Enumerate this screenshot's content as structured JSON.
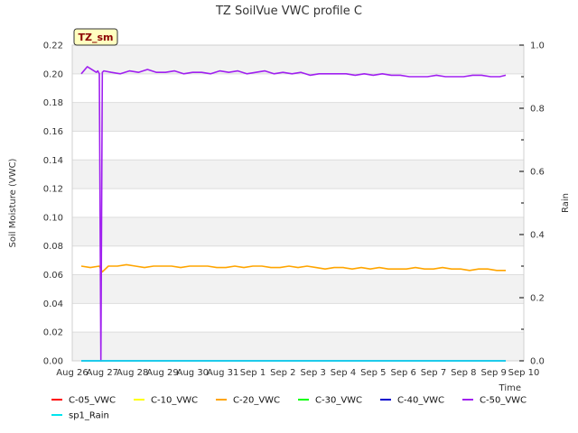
{
  "chart_data": {
    "type": "line",
    "title": "TZ SoilVue VWC profile C",
    "badge": "TZ_sm",
    "xlabel": "Time",
    "ylabel": "Soil Moisture (VWC)",
    "y2label": "Rain",
    "ylim": [
      0,
      0.22
    ],
    "y2lim": [
      0,
      1.0
    ],
    "xlim": [
      0,
      15
    ],
    "yticks": [
      "0.00",
      "0.02",
      "0.04",
      "0.06",
      "0.08",
      "0.10",
      "0.12",
      "0.14",
      "0.16",
      "0.18",
      "0.20",
      "0.22"
    ],
    "y2ticks": [
      "0.0",
      "0.2",
      "0.4",
      "0.6",
      "0.8",
      "1.0"
    ],
    "xticks": [
      "Aug 26",
      "Aug 27",
      "Aug 28",
      "Aug 29",
      "Aug 30",
      "Aug 31",
      "Sep 1",
      "Sep 2",
      "Sep 3",
      "Sep 4",
      "Sep 5",
      "Sep 6",
      "Sep 7",
      "Sep 8",
      "Sep 9",
      "Sep 10"
    ],
    "series": [
      {
        "name": "C-05_VWC",
        "color": "#ff0000",
        "x": [],
        "values": []
      },
      {
        "name": "C-10_VWC",
        "color": "#ffff00",
        "x": [],
        "values": []
      },
      {
        "name": "C-20_VWC",
        "color": "#ffa500",
        "x": [
          0.3,
          0.6,
          0.9,
          1.0,
          1.2,
          1.5,
          1.8,
          2.1,
          2.4,
          2.7,
          3.0,
          3.3,
          3.6,
          3.9,
          4.2,
          4.5,
          4.8,
          5.1,
          5.4,
          5.7,
          6.0,
          6.3,
          6.6,
          6.9,
          7.2,
          7.5,
          7.8,
          8.1,
          8.4,
          8.7,
          9.0,
          9.3,
          9.6,
          9.9,
          10.2,
          10.5,
          10.8,
          11.1,
          11.4,
          11.7,
          12.0,
          12.3,
          12.6,
          12.9,
          13.2,
          13.5,
          13.8,
          14.1,
          14.4
        ],
        "values": [
          0.066,
          0.065,
          0.066,
          0.062,
          0.066,
          0.066,
          0.067,
          0.066,
          0.065,
          0.066,
          0.066,
          0.066,
          0.065,
          0.066,
          0.066,
          0.066,
          0.065,
          0.065,
          0.066,
          0.065,
          0.066,
          0.066,
          0.065,
          0.065,
          0.066,
          0.065,
          0.066,
          0.065,
          0.064,
          0.065,
          0.065,
          0.064,
          0.065,
          0.064,
          0.065,
          0.064,
          0.064,
          0.064,
          0.065,
          0.064,
          0.064,
          0.065,
          0.064,
          0.064,
          0.063,
          0.064,
          0.064,
          0.063,
          0.063
        ]
      },
      {
        "name": "C-30_VWC",
        "color": "#00ff00",
        "x": [],
        "values": []
      },
      {
        "name": "C-40_VWC",
        "color": "#0000cd",
        "x": [
          0.3,
          1.0,
          4.0,
          7.0,
          10.0,
          14.4
        ],
        "values": [
          0.0,
          0.0,
          0.0,
          0.0,
          0.0,
          0.0
        ]
      },
      {
        "name": "C-50_VWC",
        "color": "#a020f0",
        "x": [
          0.3,
          0.5,
          0.8,
          0.85,
          0.9,
          0.95,
          1.0,
          1.05,
          1.3,
          1.6,
          1.9,
          2.2,
          2.5,
          2.8,
          3.1,
          3.4,
          3.7,
          4.0,
          4.3,
          4.6,
          4.9,
          5.2,
          5.5,
          5.8,
          6.1,
          6.4,
          6.7,
          7.0,
          7.3,
          7.6,
          7.9,
          8.2,
          8.5,
          8.8,
          9.1,
          9.4,
          9.7,
          10.0,
          10.3,
          10.6,
          10.9,
          11.2,
          11.5,
          11.8,
          12.1,
          12.4,
          12.7,
          13.0,
          13.3,
          13.6,
          13.9,
          14.2,
          14.4
        ],
        "values": [
          0.2,
          0.205,
          0.201,
          0.202,
          0.2,
          0.0,
          0.201,
          0.202,
          0.201,
          0.2,
          0.202,
          0.201,
          0.203,
          0.201,
          0.201,
          0.202,
          0.2,
          0.201,
          0.201,
          0.2,
          0.202,
          0.201,
          0.202,
          0.2,
          0.201,
          0.202,
          0.2,
          0.201,
          0.2,
          0.201,
          0.199,
          0.2,
          0.2,
          0.2,
          0.2,
          0.199,
          0.2,
          0.199,
          0.2,
          0.199,
          0.199,
          0.198,
          0.198,
          0.198,
          0.199,
          0.198,
          0.198,
          0.198,
          0.199,
          0.199,
          0.198,
          0.198,
          0.199
        ]
      },
      {
        "name": "sp1_Rain",
        "color": "#00e5ee",
        "axis": "y2",
        "x": [
          0.3,
          14.4
        ],
        "values": [
          0.0,
          0.0
        ]
      }
    ],
    "legend": [
      "C-05_VWC",
      "C-10_VWC",
      "C-20_VWC",
      "C-30_VWC",
      "C-40_VWC",
      "C-50_VWC",
      "sp1_Rain"
    ],
    "legend_position": "bottom",
    "grid": true
  }
}
